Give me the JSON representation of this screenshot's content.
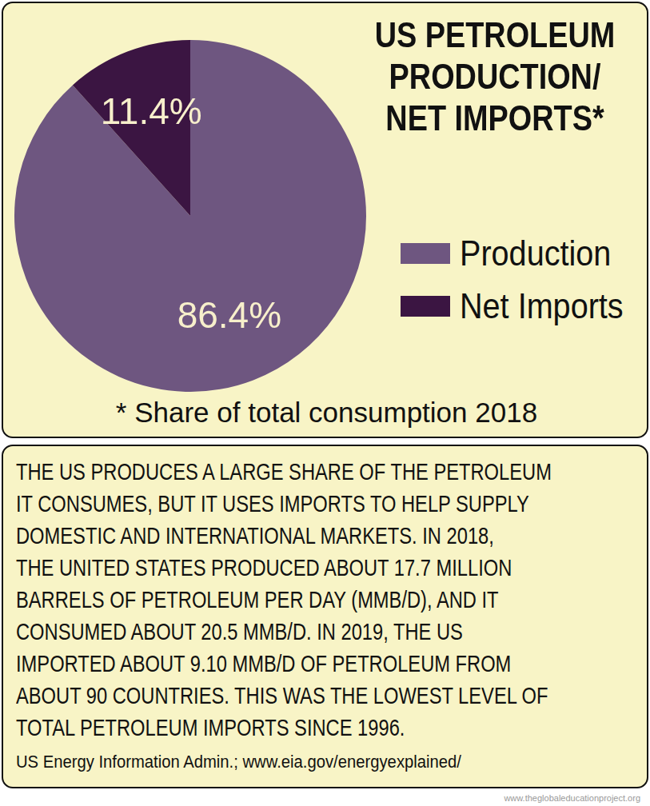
{
  "chart_data": {
    "type": "pie",
    "title": [
      "US PETROLEUM",
      "PRODUCTION/",
      "NET IMPORTS*"
    ],
    "annotations": [
      "* Share of total consumption 2018"
    ],
    "categories": [
      "Production",
      "Net Imports"
    ],
    "values": [
      86.4,
      11.4
    ],
    "value_labels": [
      "86.4%",
      "11.4%"
    ],
    "colors": [
      "#6e5680",
      "#3b1542"
    ],
    "data_labels": true,
    "legend": "right"
  },
  "text_box": {
    "lines": [
      "THE US PRODUCES A LARGE SHARE OF THE PETROLEUM",
      "IT CONSUMES, BUT IT USES IMPORTS TO HELP SUPPLY",
      "DOMESTIC AND INTERNATIONAL MARKETS. IN 2018,",
      "THE UNITED STATES PRODUCED ABOUT 17.7 MILLION",
      "BARRELS OF PETROLEUM PER DAY (MMB/D), AND IT",
      "CONSUMED ABOUT 20.5 MMB/D. IN 2019, THE US",
      "IMPORTED ABOUT 9.10 MMB/D OF PETROLEUM FROM",
      "ABOUT 90 COUNTRIES. THIS WAS THE LOWEST LEVEL OF",
      "TOTAL PETROLEUM IMPORTS SINCE 1996."
    ],
    "source": "US Energy Information Admin.; www.eia.gov/energyexplained/"
  },
  "footer": "www.theglobaleducationproject.org"
}
